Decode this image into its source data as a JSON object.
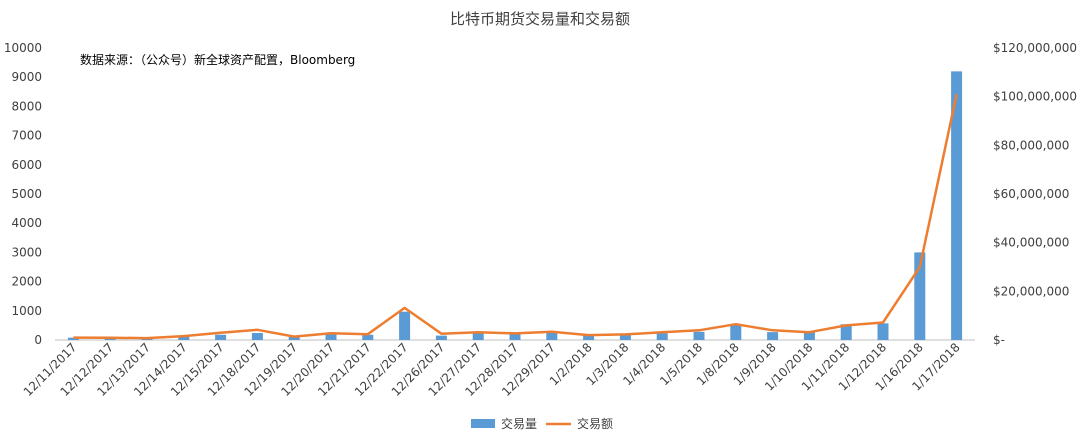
{
  "chart_data": {
    "type": "bar",
    "title": "比特币期货交易量和交易额",
    "note": "数据来源：（公众号）新全球资产配置，Bloomberg",
    "categories": [
      "12/11/2017",
      "12/12/2017",
      "12/13/2017",
      "12/14/2017",
      "12/15/2017",
      "12/18/2017",
      "12/19/2017",
      "12/20/2017",
      "12/21/2017",
      "12/22/2017",
      "12/26/2017",
      "12/27/2017",
      "12/28/2017",
      "12/29/2017",
      "1/2/2018",
      "1/3/2018",
      "1/4/2018",
      "1/5/2018",
      "1/8/2018",
      "1/9/2018",
      "1/10/2018",
      "1/11/2018",
      "1/12/2018",
      "1/16/2018",
      "1/17/2018"
    ],
    "series": [
      {
        "name": "交易量",
        "axis": "left",
        "type": "bar",
        "color": "#5b9bd5",
        "values": [
          80,
          70,
          60,
          130,
          180,
          240,
          100,
          190,
          180,
          970,
          150,
          230,
          210,
          240,
          190,
          200,
          230,
          280,
          500,
          270,
          270,
          540,
          570,
          3000,
          9200
        ]
      },
      {
        "name": "交易额",
        "axis": "right",
        "type": "line",
        "color": "#ed7d31",
        "values": [
          1000000,
          900000,
          800000,
          1600000,
          3000000,
          4200000,
          1400000,
          2800000,
          2400000,
          13200000,
          2600000,
          3200000,
          2700000,
          3400000,
          2000000,
          2300000,
          3200000,
          4000000,
          6500000,
          4000000,
          3200000,
          6000000,
          7200000,
          30000000,
          101000000
        ]
      }
    ],
    "y_left": {
      "min": 0,
      "max": 10000,
      "step": 1000,
      "ticks": [
        "0",
        "1000",
        "2000",
        "3000",
        "4000",
        "5000",
        "6000",
        "7000",
        "8000",
        "9000",
        "10000"
      ]
    },
    "y_right": {
      "min": 0,
      "max": 120000000,
      "step": 20000000,
      "ticks": [
        "$-",
        "$20,000,000",
        "$40,000,000",
        "$60,000,000",
        "$80,000,000",
        "$100,000,000",
        "$120,000,000"
      ]
    },
    "grid": false,
    "legend_position": "bottom"
  }
}
